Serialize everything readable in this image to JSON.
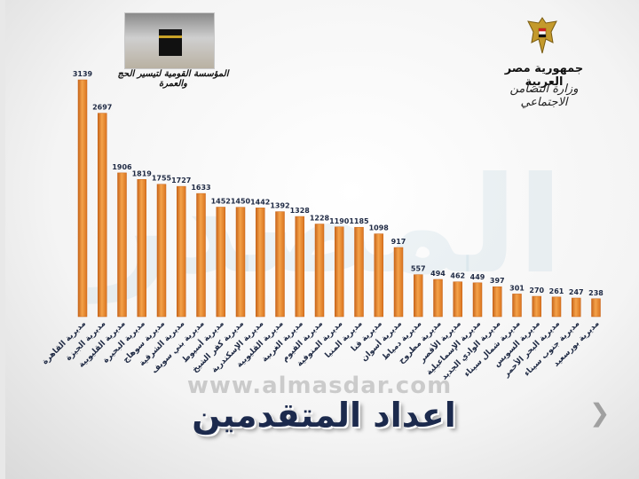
{
  "header": {
    "org_logo_caption": "المؤسسة القومية لتيسير الحج والعمرة",
    "country": "جمهورية مصر العربية",
    "ministry": "وزارة التضامن الاجتماعي"
  },
  "footer": {
    "watermark_url": "www.almasdar.com",
    "title": "اعداد المتقدمين",
    "next_icon": "chevron-right-icon"
  },
  "colors": {
    "bar": "#f08a24",
    "bar_dark": "#c8651a",
    "label": "#1f2a44",
    "title": "#1c2a4d"
  },
  "chart_data": {
    "type": "bar",
    "categories": [
      "مديرية القاهرة",
      "مديرية الجيزة",
      "مديرية القليوبية",
      "مديرية البحيرة",
      "مديرية سوهاج",
      "مديرية الشرقية",
      "مديرية بني سويف",
      "مديرية أسيوط",
      "مديرية كفر الشيخ",
      "مديرية الإسكندرية",
      "مديرية القليوبية",
      "مديرية الغربية",
      "مديرية الفيوم",
      "مديرية المنوفية",
      "مديرية المنيا",
      "مديرية قنا",
      "مديرية أسوان",
      "مديرية دمياط",
      "مديرية مطروح",
      "مديرية الأقصر",
      "مديرية الإسماعيلية",
      "مديرية الوادي الجديد",
      "مديرية شمال سيناء",
      "مديرية السويس",
      "مديرية البحر الأحمر",
      "مديرية جنوب سيناء",
      "مديرية بورسعيد"
    ],
    "values": [
      3139,
      2697,
      1906,
      1819,
      1755,
      1727,
      1633,
      1452,
      1450,
      1442,
      1392,
      1328,
      1228,
      1190,
      1185,
      1098,
      917,
      557,
      494,
      462,
      449,
      397,
      301,
      270,
      261,
      247,
      238
    ],
    "ylim": [
      0,
      3139
    ],
    "grid": false,
    "legend": "none"
  }
}
